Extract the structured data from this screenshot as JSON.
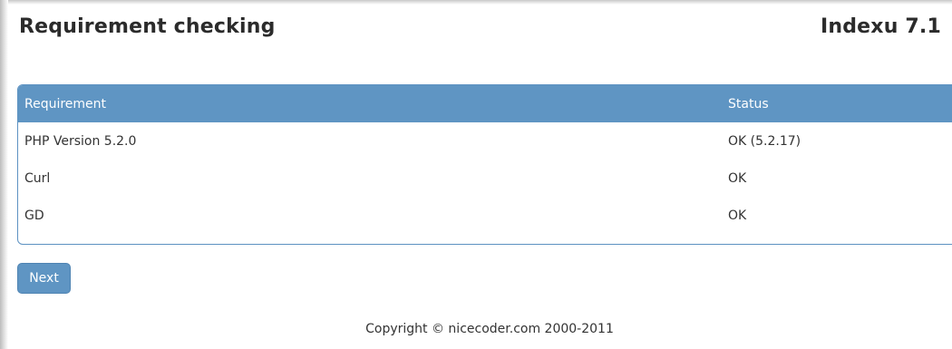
{
  "header": {
    "title": "Requirement checking",
    "version": "Indexu 7.1"
  },
  "requirements_table": {
    "columns": [
      "Requirement",
      "Status"
    ],
    "rows": [
      {
        "requirement": "PHP Version 5.2.0",
        "status": "OK (5.2.17)"
      },
      {
        "requirement": "Curl",
        "status": "OK"
      },
      {
        "requirement": "GD",
        "status": "OK"
      }
    ]
  },
  "actions": {
    "next_label": "Next"
  },
  "footer": {
    "copyright": "Copyright © nicecoder.com 2000-2011"
  },
  "colors": {
    "accent": "#5f95c3",
    "panel_border": "#5d92c2",
    "text": "#333333"
  }
}
